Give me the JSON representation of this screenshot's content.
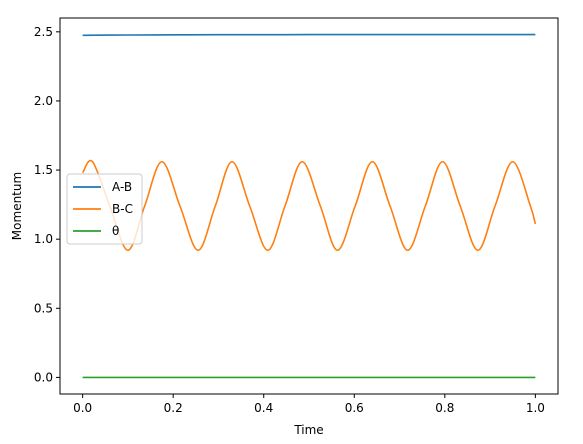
{
  "chart_data": {
    "type": "line",
    "xlabel": "Time",
    "ylabel": "Momentum",
    "xlim": [
      -0.05,
      1.05
    ],
    "ylim": [
      -0.12,
      2.6
    ],
    "xticks": [
      0.0,
      0.2,
      0.4,
      0.6,
      0.8,
      1.0
    ],
    "xtick_labels": [
      "0.0",
      "0.2",
      "0.4",
      "0.6",
      "0.8",
      "1.0"
    ],
    "yticks": [
      0.0,
      0.5,
      1.0,
      1.5,
      2.0,
      2.5
    ],
    "ytick_labels": [
      "0.0",
      "0.5",
      "1.0",
      "1.5",
      "2.0",
      "2.5"
    ],
    "grid": false,
    "legend_position": "center-left",
    "series": [
      {
        "name": "A-B",
        "color": "#1f77b4",
        "x": [
          0.0,
          0.1,
          0.2,
          0.3,
          0.4,
          0.5,
          0.6,
          0.7,
          0.8,
          0.9,
          1.0
        ],
        "y": [
          2.475,
          2.477,
          2.478,
          2.479,
          2.479,
          2.48,
          2.48,
          2.48,
          2.48,
          2.48,
          2.48
        ]
      },
      {
        "name": "B-C",
        "color": "#ff7f0e",
        "x": [
          0.0,
          0.022,
          0.06,
          0.1,
          0.137,
          0.175,
          0.215,
          0.255,
          0.293,
          0.33,
          0.369,
          0.409,
          0.447,
          0.485,
          0.525,
          0.563,
          0.602,
          0.64,
          0.679,
          0.718,
          0.757,
          0.795,
          0.834,
          0.873,
          0.911,
          0.95,
          0.989,
          1.0
        ],
        "y": [
          1.48,
          1.56,
          1.24,
          0.92,
          1.24,
          1.56,
          1.24,
          0.92,
          1.24,
          1.56,
          1.24,
          0.92,
          1.24,
          1.56,
          1.24,
          0.92,
          1.24,
          1.56,
          1.24,
          0.92,
          1.24,
          1.56,
          1.24,
          0.92,
          1.24,
          1.56,
          1.24,
          1.11
        ]
      },
      {
        "name": "θ",
        "color": "#2ca02c",
        "x": [
          0.0,
          1.0
        ],
        "y": [
          0.0,
          0.0
        ]
      }
    ]
  }
}
